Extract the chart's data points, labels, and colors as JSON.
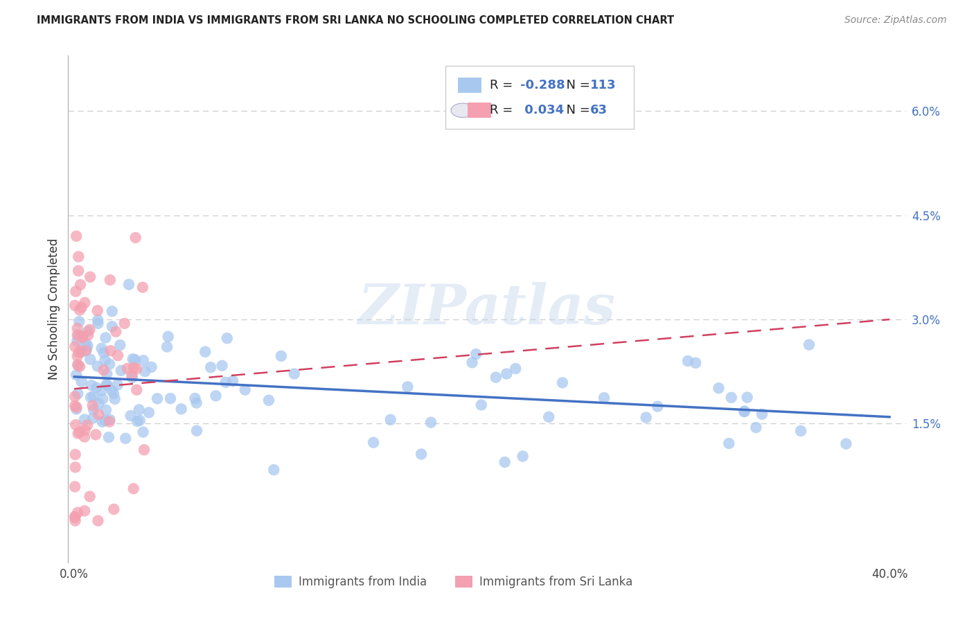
{
  "title": "IMMIGRANTS FROM INDIA VS IMMIGRANTS FROM SRI LANKA NO SCHOOLING COMPLETED CORRELATION CHART",
  "source": "Source: ZipAtlas.com",
  "ylabel": "No Schooling Completed",
  "ytick_labels": [
    "6.0%",
    "4.5%",
    "3.0%",
    "1.5%"
  ],
  "ytick_values": [
    0.06,
    0.045,
    0.03,
    0.015
  ],
  "xlim": [
    -0.003,
    0.408
  ],
  "ylim": [
    -0.005,
    0.068
  ],
  "india_color": "#a8c8f0",
  "india_line_color": "#4472c4",
  "srilanka_color": "#f4a0b0",
  "srilanka_line_color": "#d04060",
  "legend_india_R": "-0.288",
  "legend_india_N": "113",
  "legend_srilanka_R": "0.034",
  "legend_srilanka_N": "63",
  "watermark": "ZIPatlas",
  "background_color": "#ffffff",
  "grid_color": "#cccccc",
  "xtick_labels": [
    "0.0%",
    "40.0%"
  ],
  "xtick_values": [
    0.0,
    0.4
  ]
}
